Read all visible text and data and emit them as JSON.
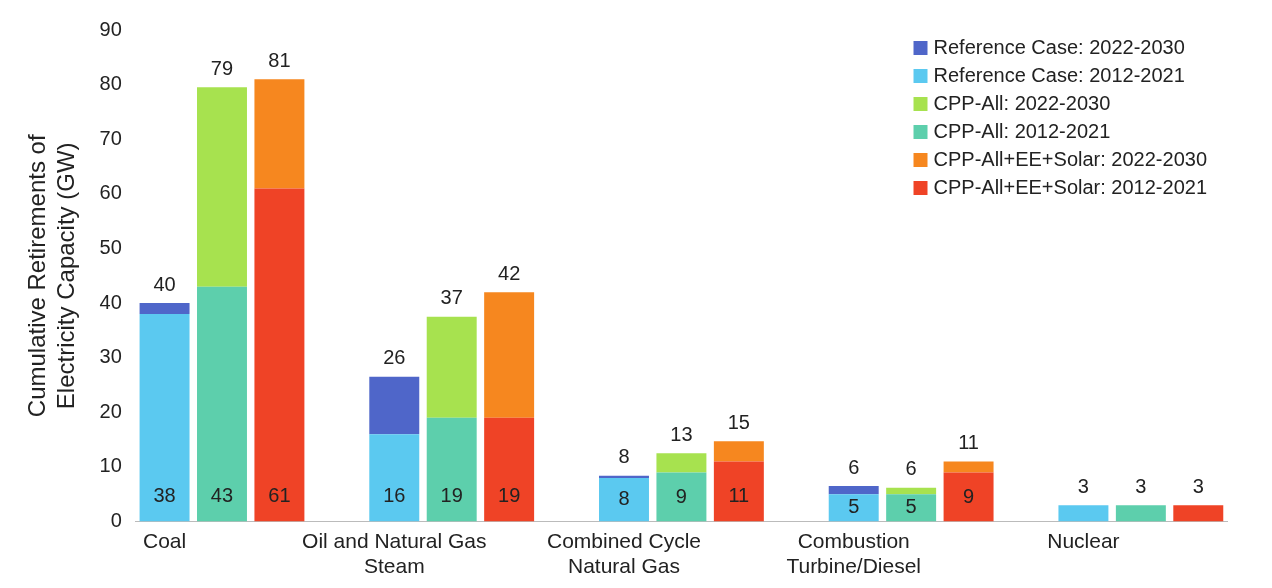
{
  "chart_data": {
    "type": "bar",
    "stacked": true,
    "ylabel": "Cumulative Retirements of Electricity Capacity (GW)",
    "categories": [
      "Coal",
      null,
      null,
      null,
      "Oil and Natural Gas Steam",
      null,
      null,
      null,
      "Combined Cycle Natural Gas",
      null,
      null,
      null,
      "Combustion Turbine/Diesel",
      null,
      null,
      null,
      "Nuclear",
      null,
      null
    ],
    "ylim": [
      0,
      90
    ],
    "yticks": [
      0,
      10,
      20,
      30,
      40,
      50,
      60,
      70,
      80,
      90
    ],
    "grid": false,
    "legend": "top right",
    "series": [
      {
        "name": "Reference Case: 2012-2021",
        "color": "#5bc9f0",
        "values": [
          38,
          null,
          null,
          null,
          16,
          null,
          null,
          null,
          8,
          null,
          null,
          null,
          5,
          null,
          null,
          null,
          3,
          null,
          null
        ],
        "value_labels": [
          "38",
          null,
          null,
          null,
          "16",
          null,
          null,
          null,
          "8",
          null,
          null,
          null,
          "5",
          null,
          null,
          null,
          null,
          null,
          null
        ]
      },
      {
        "name": "CPP-All: 2012-2021",
        "color": "#5dcfac",
        "values": [
          null,
          43,
          null,
          null,
          null,
          19,
          null,
          null,
          null,
          9,
          null,
          null,
          null,
          5,
          null,
          null,
          null,
          3,
          null
        ],
        "value_labels": [
          null,
          "43",
          null,
          null,
          null,
          "19",
          null,
          null,
          null,
          "9",
          null,
          null,
          null,
          "5",
          null,
          null,
          null,
          null,
          null
        ]
      },
      {
        "name": "CPP-All+EE+Solar: 2012-2021",
        "color": "#ef4326",
        "values": [
          null,
          null,
          61,
          null,
          null,
          null,
          19,
          null,
          null,
          null,
          11,
          null,
          null,
          null,
          9,
          null,
          null,
          null,
          3
        ],
        "value_labels": [
          null,
          null,
          "61",
          null,
          null,
          null,
          "19",
          null,
          null,
          null,
          "11",
          null,
          null,
          null,
          "9",
          null,
          null,
          null,
          null
        ]
      },
      {
        "name": "Reference Case: 2022-2030",
        "color": "#4f66c9",
        "values": [
          2,
          null,
          null,
          null,
          10.5,
          null,
          null,
          null,
          0.4,
          null,
          null,
          null,
          1.5,
          null,
          null,
          null,
          null,
          null,
          null
        ]
      },
      {
        "name": "CPP-All: 2022-2030",
        "color": "#a7e24f",
        "values": [
          null,
          36.5,
          null,
          null,
          null,
          18.5,
          null,
          null,
          null,
          3.5,
          null,
          null,
          null,
          1.2,
          null,
          null,
          null,
          null,
          null
        ]
      },
      {
        "name": "CPP-All+EE+Solar: 2022-2030",
        "color": "#f6871f",
        "values": [
          null,
          null,
          20,
          null,
          null,
          null,
          23,
          null,
          null,
          null,
          3.7,
          null,
          null,
          null,
          2,
          null,
          null,
          null,
          null
        ]
      }
    ],
    "totals": [
      "40",
      "79",
      "81",
      null,
      "26",
      "37",
      "42",
      null,
      "8",
      "13",
      "15",
      null,
      "6",
      "6",
      "11",
      null,
      "3",
      "3",
      "3"
    ]
  }
}
